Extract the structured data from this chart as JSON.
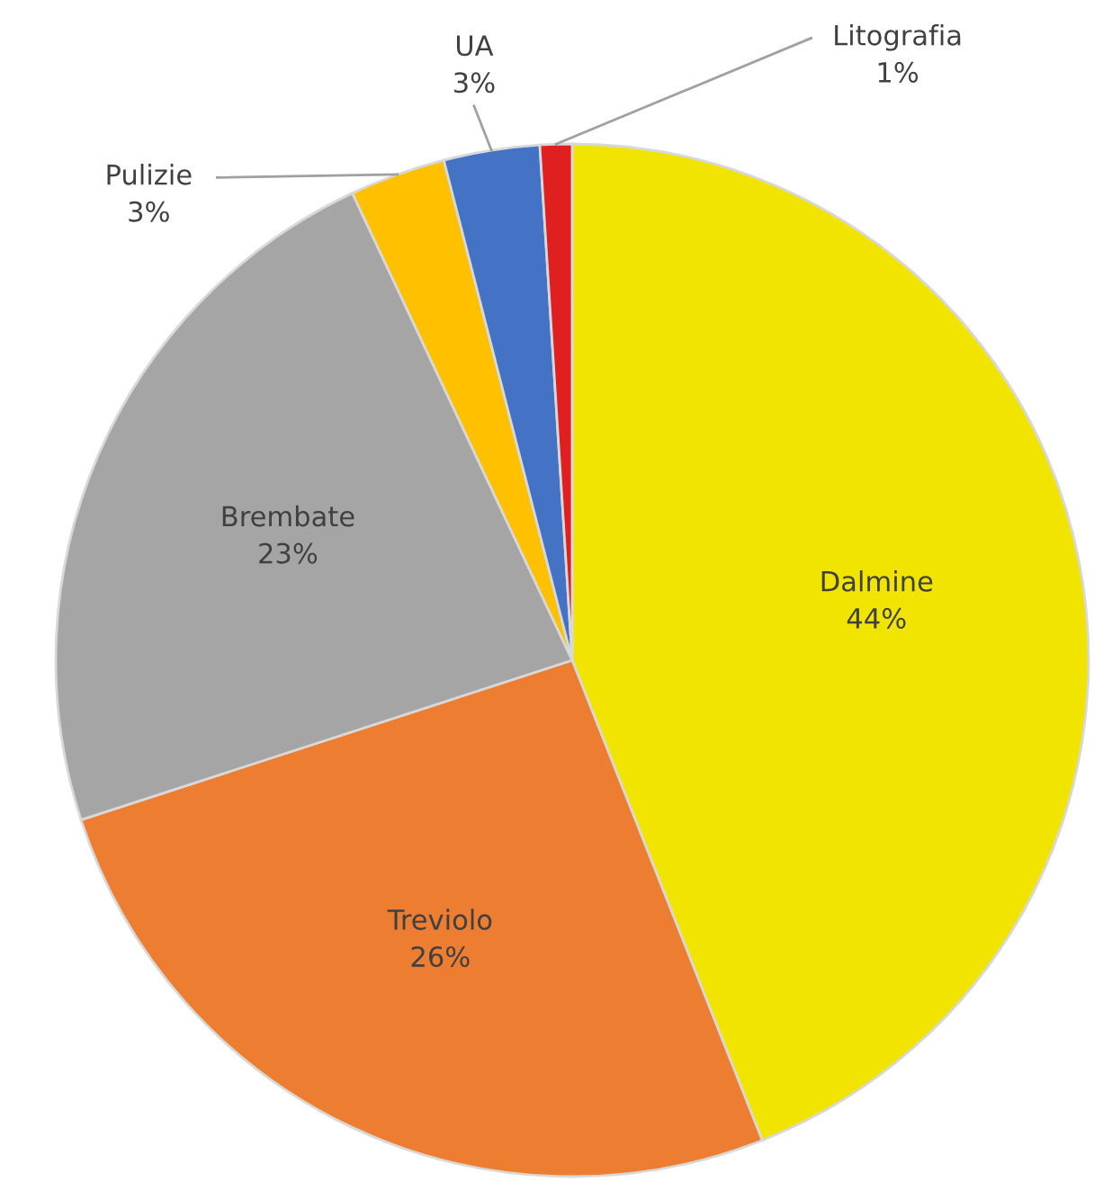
{
  "chart_data": {
    "type": "pie",
    "categories": [
      "Dalmine",
      "Treviolo",
      "Brembate",
      "Pulizie",
      "UA",
      "Litografia"
    ],
    "values": [
      44,
      26,
      23,
      3,
      3,
      1
    ],
    "colors": [
      "#f0e400",
      "#ed7d31",
      "#a5a5a5",
      "#ffc000",
      "#4472c4",
      "#e02020"
    ],
    "value_labels": [
      "44%",
      "26%",
      "23%",
      "3%",
      "3%",
      "1%"
    ]
  }
}
